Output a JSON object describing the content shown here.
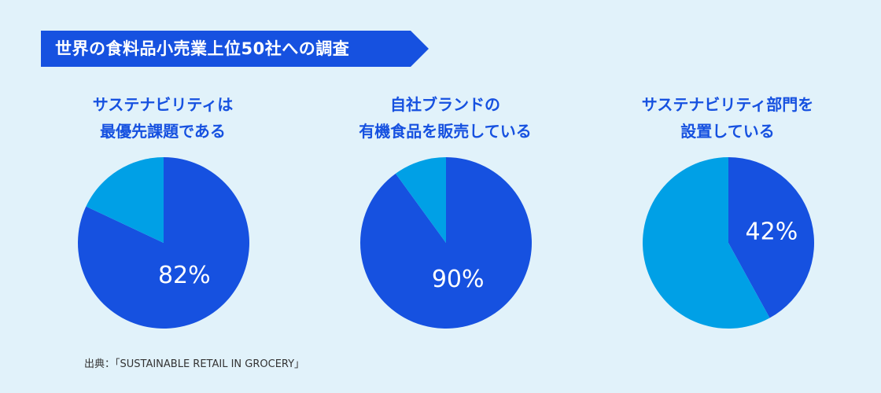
{
  "banner": {
    "title": "世界の食料品小売業上位50社への調査"
  },
  "colors": {
    "primary": "#1651e0",
    "secondary": "#00a0e6",
    "background": "#e1f2fa",
    "label": "#ffffff"
  },
  "chart_data": [
    {
      "type": "pie",
      "title_lines": [
        "サステナビリティは",
        "最優先課題である"
      ],
      "slices": [
        {
          "value": 82,
          "label": "82%",
          "color": "#1651e0"
        },
        {
          "value": 18,
          "label": "",
          "color": "#00a0e6"
        }
      ]
    },
    {
      "type": "pie",
      "title_lines": [
        "自社ブランドの",
        "有機食品を販売している"
      ],
      "slices": [
        {
          "value": 90,
          "label": "90%",
          "color": "#1651e0"
        },
        {
          "value": 10,
          "label": "",
          "color": "#00a0e6"
        }
      ]
    },
    {
      "type": "pie",
      "title_lines": [
        "サステナビリティ部門を",
        "設置している"
      ],
      "slices": [
        {
          "value": 42,
          "label": "42%",
          "color": "#1651e0"
        },
        {
          "value": 58,
          "label": "",
          "color": "#00a0e6"
        }
      ]
    }
  ],
  "source": "出典：「SUSTAINABLE RETAIL IN GROCERY」"
}
